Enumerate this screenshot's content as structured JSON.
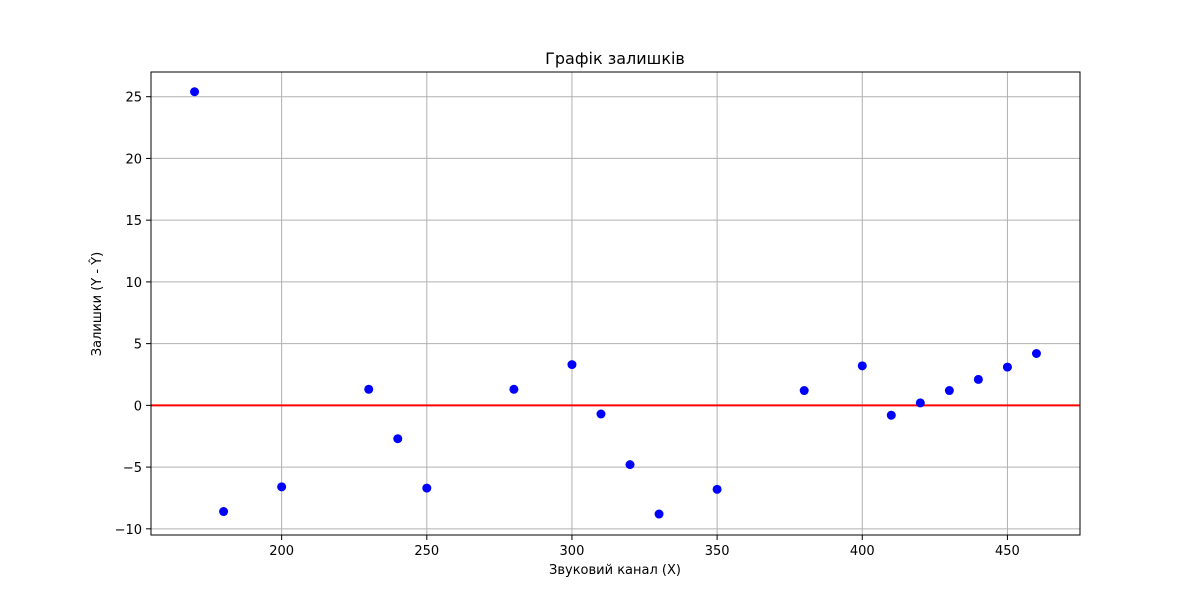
{
  "chart_data": {
    "type": "scatter",
    "title": "Графік залишків",
    "xlabel": "Звуковий канал (X)",
    "ylabel": "Залишки (Y - Ŷ)",
    "xlim": [
      155,
      475
    ],
    "ylim": [
      -10.5,
      27
    ],
    "xticks": [
      200,
      250,
      300,
      350,
      400,
      450
    ],
    "yticks": [
      -10,
      -5,
      0,
      5,
      10,
      15,
      20,
      25
    ],
    "grid": true,
    "legend": "none",
    "points": [
      {
        "x": 170,
        "y": 25.4
      },
      {
        "x": 180,
        "y": -8.6
      },
      {
        "x": 200,
        "y": -6.6
      },
      {
        "x": 230,
        "y": 1.3
      },
      {
        "x": 240,
        "y": -2.7
      },
      {
        "x": 250,
        "y": -6.7
      },
      {
        "x": 280,
        "y": 1.3
      },
      {
        "x": 300,
        "y": 3.3
      },
      {
        "x": 310,
        "y": -0.7
      },
      {
        "x": 320,
        "y": -4.8
      },
      {
        "x": 330,
        "y": -8.8
      },
      {
        "x": 350,
        "y": -6.8
      },
      {
        "x": 380,
        "y": 1.2
      },
      {
        "x": 400,
        "y": 3.2
      },
      {
        "x": 410,
        "y": -0.8
      },
      {
        "x": 420,
        "y": 0.2
      },
      {
        "x": 430,
        "y": 1.2
      },
      {
        "x": 440,
        "y": 2.1
      },
      {
        "x": 450,
        "y": 3.1
      },
      {
        "x": 460,
        "y": 4.2
      }
    ],
    "reference_line": {
      "y": 0,
      "color": "#ff0000"
    },
    "point_color": "#0000ff",
    "grid_color": "#b0b0b0"
  }
}
